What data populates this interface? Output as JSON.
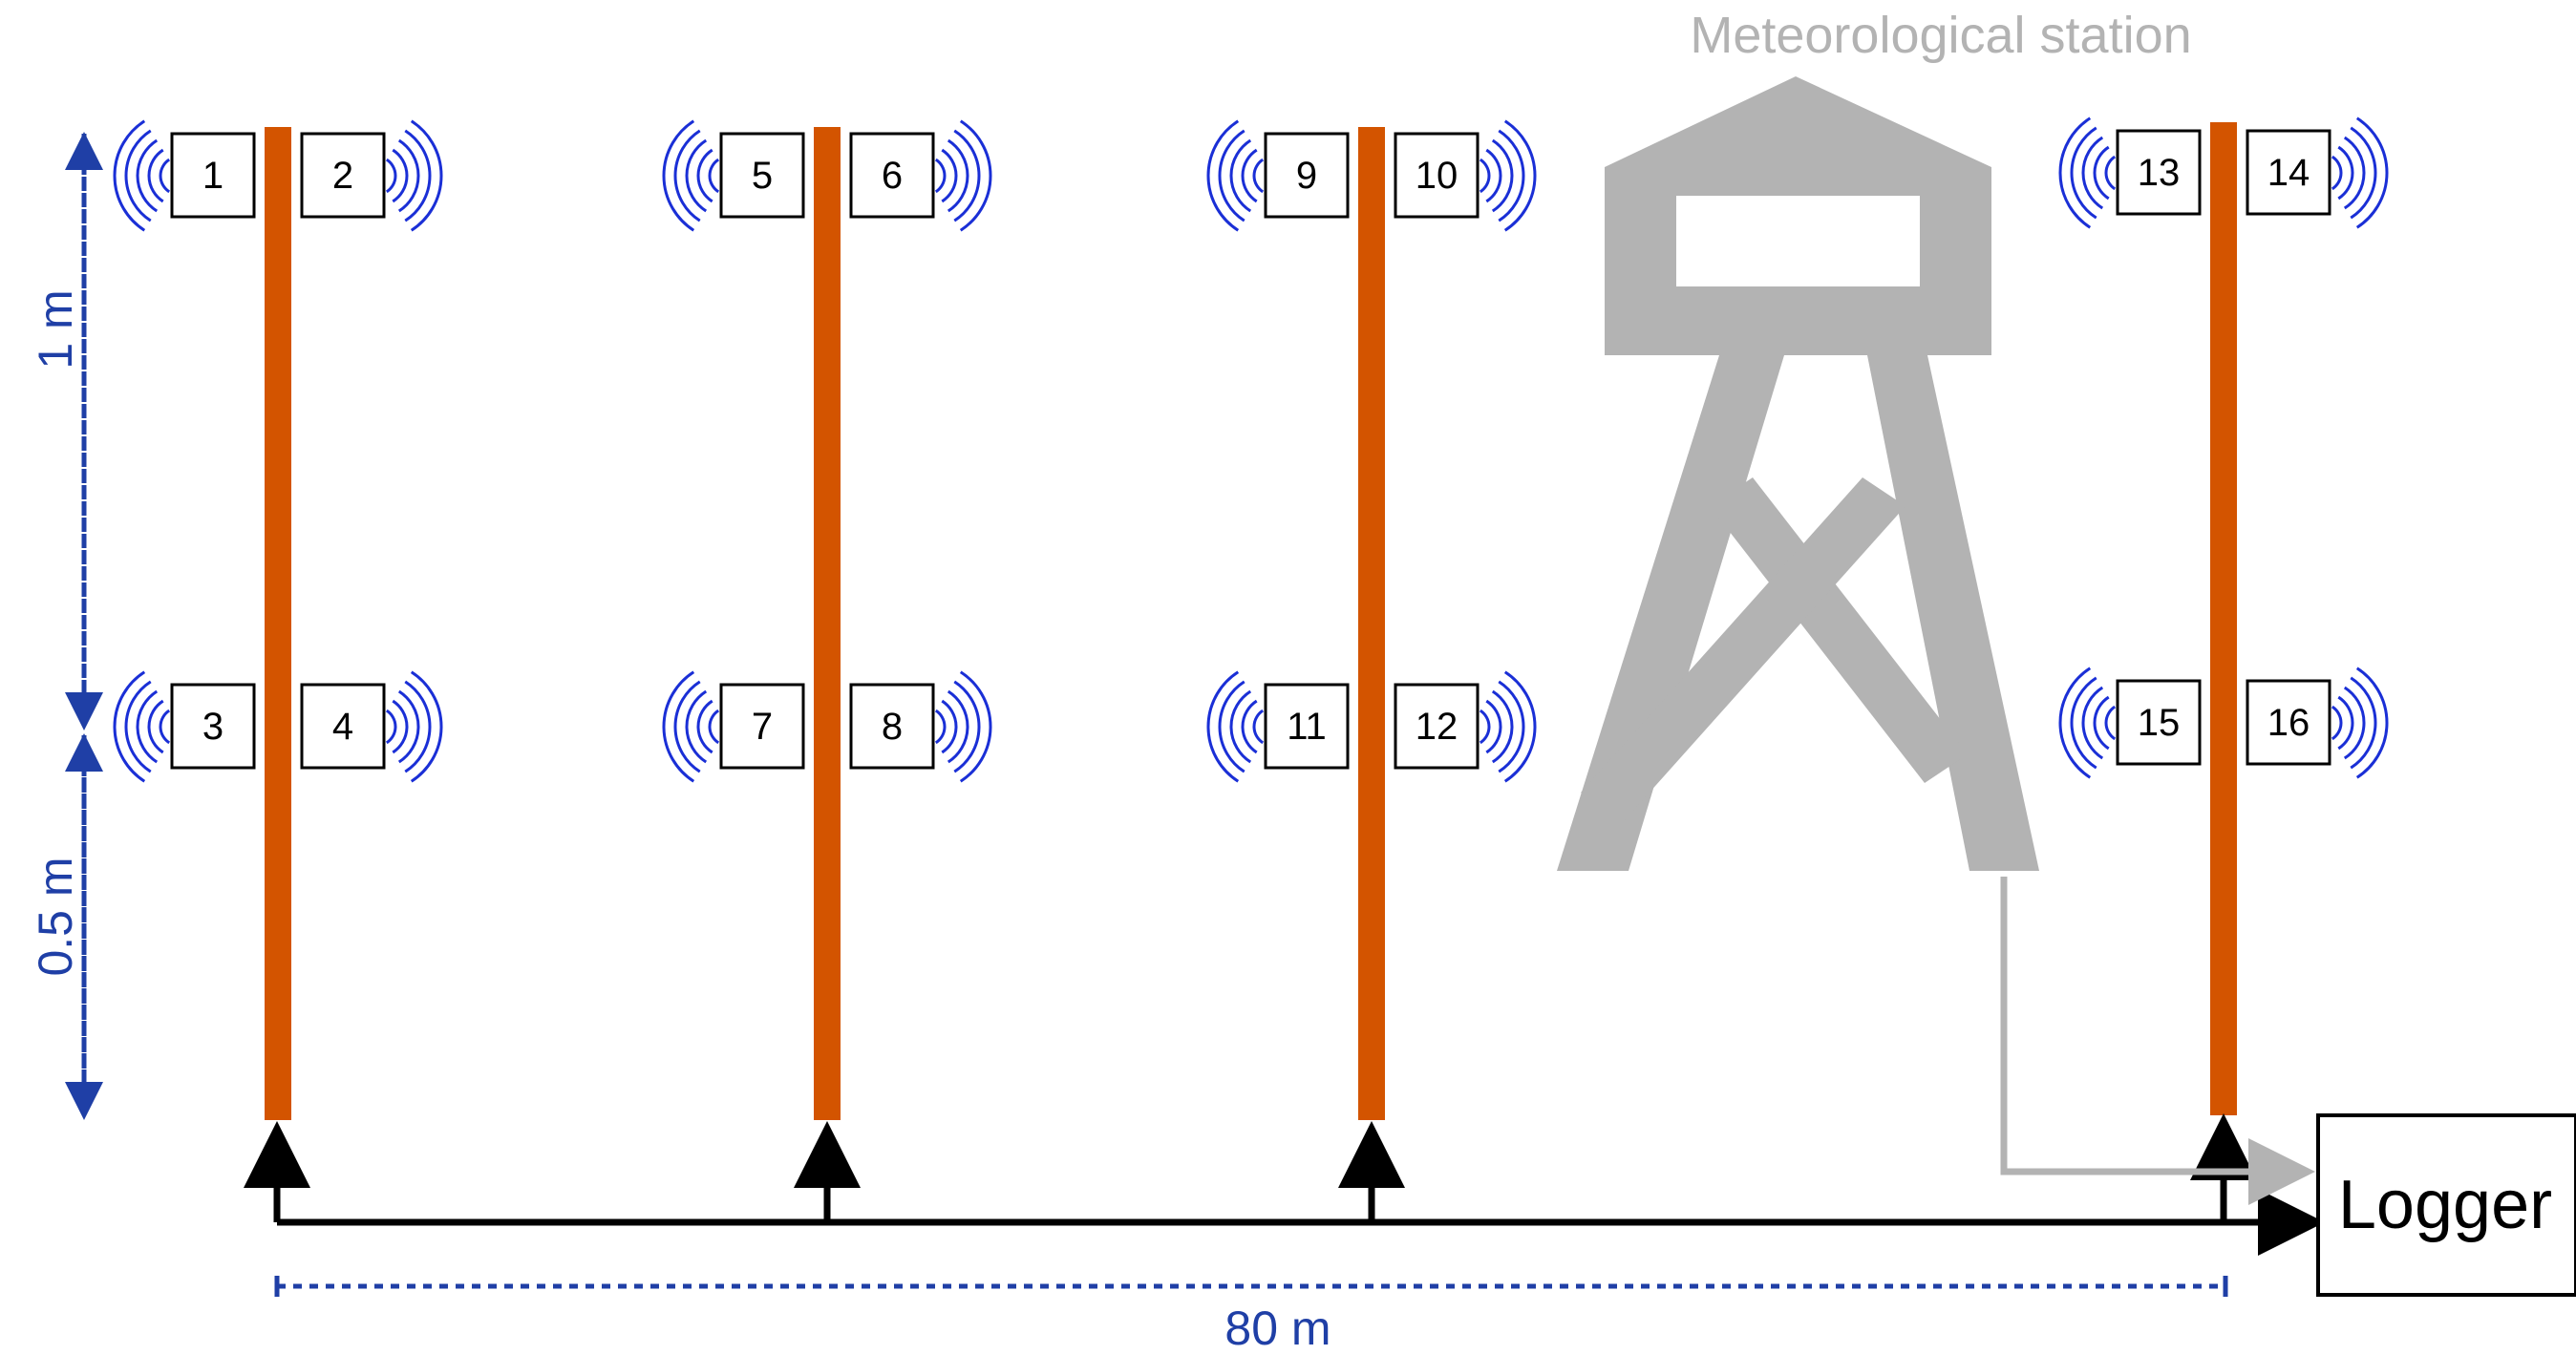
{
  "station": {
    "label": "Meteorological station"
  },
  "logger": {
    "label": "Logger"
  },
  "dimensions": {
    "upper_height": "1 m",
    "lower_height": "0.5 m",
    "total_width": "80 m"
  },
  "sensors": {
    "s1": "1",
    "s2": "2",
    "s3": "3",
    "s4": "4",
    "s5": "5",
    "s6": "6",
    "s7": "7",
    "s8": "8",
    "s9": "9",
    "s10": "10",
    "s11": "11",
    "s12": "12",
    "s13": "13",
    "s14": "14",
    "s15": "15",
    "s16": "16"
  },
  "colors": {
    "pole": "#d35400",
    "signal": "#1a2fd6",
    "dimension": "#1f3fa6",
    "station": "#b3b3b3",
    "cable": "#000000"
  }
}
